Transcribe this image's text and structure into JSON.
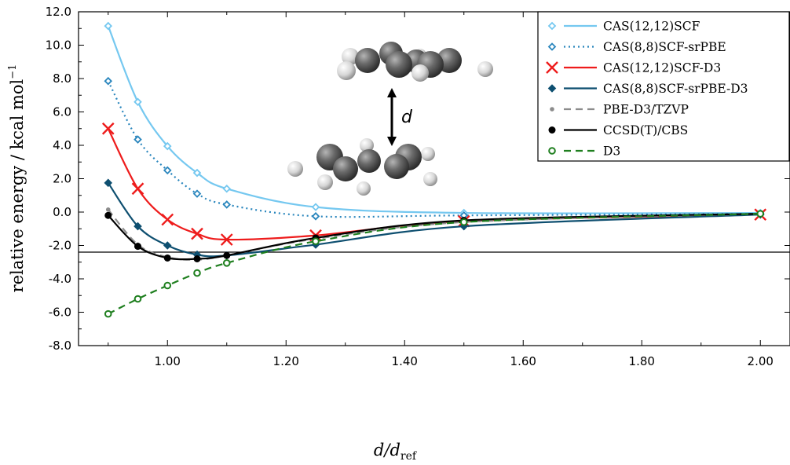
{
  "chart_data": {
    "type": "line",
    "xlabel_main": "d/d",
    "xlabel_sub": "ref",
    "ylabel_main": "relative energy / kcal mol",
    "ylabel_sup": "−1",
    "xlim": [
      0.85,
      2.05
    ],
    "ylim": [
      -8,
      12
    ],
    "xticks": [
      1.0,
      1.2,
      1.4,
      1.6,
      1.8,
      2.0
    ],
    "xtick_labels": [
      "1.00",
      "1.20",
      "1.40",
      "1.60",
      "1.80",
      "2.00"
    ],
    "yticks": [
      -8,
      -6,
      -4,
      -2,
      0,
      2,
      4,
      6,
      8,
      10,
      12
    ],
    "ytick_labels": [
      "-8.0",
      "-6.0",
      "-4.0",
      "-2.0",
      "0.0",
      "2.0",
      "4.0",
      "6.0",
      "8.0",
      "10.0",
      "12.0"
    ],
    "zero_line": true,
    "legend_position": "top-right",
    "inset_label": "d",
    "series": [
      {
        "name": "CAS(12,12)SCF",
        "color": "#75c8f0",
        "dash": "solid",
        "marker": "open-diamond",
        "x": [
          0.9,
          0.95,
          1.0,
          1.05,
          1.1,
          1.25,
          1.5,
          2.0
        ],
        "y": [
          11.15,
          6.6,
          3.95,
          2.35,
          1.4,
          0.3,
          -0.05,
          -0.05
        ]
      },
      {
        "name": "CAS(8,8)SCF-srPBE",
        "color": "#2a86bd",
        "dash": "dotted",
        "marker": "open-diamond",
        "x": [
          0.9,
          0.95,
          1.0,
          1.05,
          1.1,
          1.25,
          1.5,
          2.0
        ],
        "y": [
          7.85,
          4.35,
          2.5,
          1.1,
          0.45,
          -0.25,
          -0.2,
          -0.1
        ]
      },
      {
        "name": "CAS(12,12)SCF-D3",
        "color": "#ee1c1c",
        "dash": "solid",
        "marker": "x",
        "x": [
          0.9,
          0.95,
          1.0,
          1.05,
          1.1,
          1.25,
          1.5,
          2.0
        ],
        "y": [
          5.0,
          1.4,
          -0.45,
          -1.3,
          -1.65,
          -1.4,
          -0.55,
          -0.15
        ]
      },
      {
        "name": "CAS(8,8)SCF-srPBE-D3",
        "color": "#0e4f70",
        "dash": "solid",
        "marker": "filled-diamond",
        "x": [
          0.9,
          0.95,
          1.0,
          1.05,
          1.1,
          1.25,
          1.5,
          2.0
        ],
        "y": [
          1.75,
          -0.85,
          -2.0,
          -2.55,
          -2.6,
          -1.95,
          -0.85,
          -0.15
        ]
      },
      {
        "name": "PBE-D3/TZVP",
        "color": "#8c8c8c",
        "dash": "dashed",
        "marker": "dot",
        "x": [
          0.9,
          0.95,
          1.0,
          1.05,
          1.1,
          1.25,
          1.5,
          2.0
        ],
        "y": [
          0.15,
          -1.95,
          -2.7,
          -2.85,
          -2.6,
          -1.6,
          -0.6,
          -0.1
        ]
      },
      {
        "name": "CCSD(T)/CBS",
        "color": "#000000",
        "dash": "solid",
        "marker": "filled-circle",
        "x": [
          0.9,
          0.95,
          1.0,
          1.05,
          1.1,
          1.25,
          1.5,
          2.0
        ],
        "y": [
          -0.2,
          -2.05,
          -2.75,
          -2.8,
          -2.6,
          -1.55,
          -0.5,
          -0.1
        ]
      },
      {
        "name": "D3",
        "color": "#1f7f1f",
        "dash": "dashed",
        "marker": "open-circle",
        "x": [
          0.9,
          0.95,
          1.0,
          1.05,
          1.1,
          1.25,
          1.5,
          2.0
        ],
        "y": [
          -6.1,
          -5.2,
          -4.4,
          -3.65,
          -3.05,
          -1.75,
          -0.6,
          -0.1
        ]
      }
    ]
  }
}
